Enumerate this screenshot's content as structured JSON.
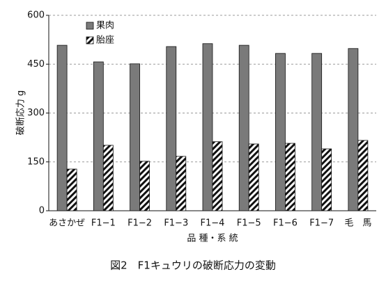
{
  "chart_data": {
    "type": "bar",
    "title": "図2　F1キュウリの破断応力の変動",
    "x_label": "品 種・系 統",
    "y_label": "破断応力 g",
    "categories": [
      "あさかぜ",
      "F1−1",
      "F1−2",
      "F1−3",
      "F1−4",
      "F1−5",
      "F1−6",
      "F1−7",
      "毛　馬"
    ],
    "series": [
      {
        "name": "果肉",
        "color": "#7a7a7a",
        "pattern": "solid",
        "values": [
          508,
          457,
          451,
          504,
          513,
          508,
          483,
          483,
          498
        ]
      },
      {
        "name": "胎座",
        "color": "#111111",
        "pattern": "hatch",
        "values": [
          128,
          201,
          152,
          167,
          212,
          205,
          207,
          190,
          216
        ]
      }
    ],
    "ylim": [
      0,
      600
    ],
    "yticks": [
      0,
      150,
      300,
      450,
      600
    ],
    "grid": true,
    "legend": "top-left"
  }
}
